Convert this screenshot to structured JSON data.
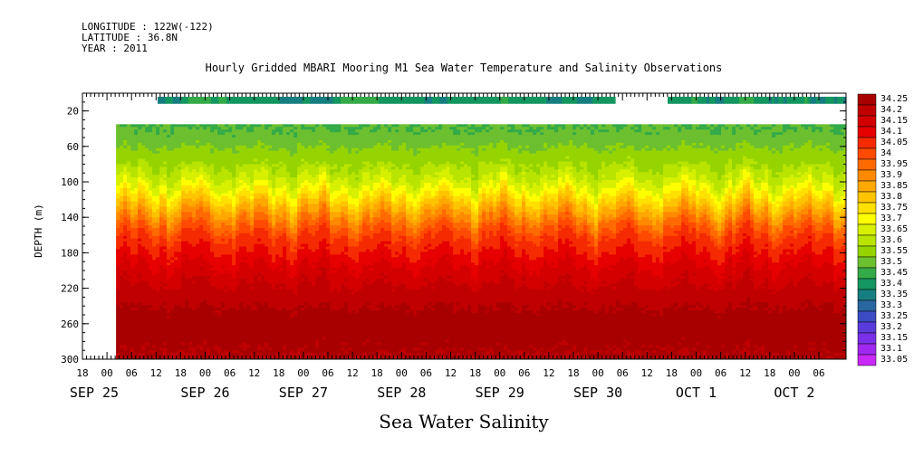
{
  "header": {
    "longitude": "LONGITUDE : 122W(-122)",
    "latitude": "LATITUDE : 36.8N",
    "year": "YEAR : 2011"
  },
  "chart_data": {
    "type": "heatmap",
    "title": "Hourly Gridded MBARI Mooring M1 Sea Water Temperature and Salinity Observations",
    "bottom_title": "Sea Water Salinity",
    "ylabel": "DEPTH (m)",
    "ylim": [
      300,
      0
    ],
    "y_ticks": [
      20,
      60,
      100,
      140,
      180,
      220,
      260,
      300
    ],
    "x_hour_ticks": [
      "18",
      "00",
      "06",
      "12",
      "18",
      "00",
      "06",
      "12",
      "18",
      "00",
      "06",
      "12",
      "18",
      "00",
      "06",
      "12",
      "18",
      "00",
      "06",
      "12",
      "18",
      "00",
      "06",
      "12",
      "18",
      "00",
      "06",
      "12",
      "18",
      "00",
      "06"
    ],
    "x_day_labels": [
      "SEP 25",
      "SEP 26",
      "SEP 27",
      "SEP 28",
      "SEP 29",
      "SEP 30",
      "OCT  1",
      "OCT  2"
    ],
    "colorbar_levels": [
      "34.25",
      "34.2",
      "34.15",
      "34.1",
      "34.05",
      "34",
      "33.95",
      "33.9",
      "33.85",
      "33.8",
      "33.75",
      "33.7",
      "33.65",
      "33.6",
      "33.55",
      "33.5",
      "33.45",
      "33.4",
      "33.35",
      "33.3",
      "33.25",
      "33.2",
      "33.15",
      "33.1",
      "33.05"
    ],
    "colorbar_colors": [
      "#a80000",
      "#c00000",
      "#d40000",
      "#e60000",
      "#f52a00",
      "#ff4a00",
      "#ff6a00",
      "#ff8a00",
      "#ffa800",
      "#ffc400",
      "#ffe000",
      "#ffff00",
      "#d6f000",
      "#b8e400",
      "#96d400",
      "#6cc030",
      "#34aa48",
      "#149660",
      "#167e80",
      "#2a66a0",
      "#3c4cc4",
      "#5a3cdc",
      "#7a30e8",
      "#a028f0",
      "#c828f8"
    ],
    "depth_profile": [
      {
        "depth": 40,
        "value": 33.45
      },
      {
        "depth": 60,
        "value": 33.5
      },
      {
        "depth": 80,
        "value": 33.55
      },
      {
        "depth": 100,
        "value": 33.62
      },
      {
        "depth": 115,
        "value": 33.72
      },
      {
        "depth": 130,
        "value": 33.82
      },
      {
        "depth": 145,
        "value": 33.92
      },
      {
        "depth": 160,
        "value": 34.0
      },
      {
        "depth": 180,
        "value": 34.06
      },
      {
        "depth": 200,
        "value": 34.12
      },
      {
        "depth": 220,
        "value": 34.16
      },
      {
        "depth": 240,
        "value": 34.2
      },
      {
        "depth": 260,
        "value": 34.24
      },
      {
        "depth": 280,
        "value": 34.21
      },
      {
        "depth": 300,
        "value": 34.2
      }
    ],
    "surface_series": {
      "depth": 10,
      "values": [
        33.35,
        33.4,
        33.4,
        33.38,
        33.36,
        33.34,
        33.35,
        33.4,
        33.42,
        33.38,
        33.36,
        33.35,
        33.36,
        33.38,
        33.4,
        33.36,
        33.35,
        33.34,
        33.36
      ]
    }
  }
}
